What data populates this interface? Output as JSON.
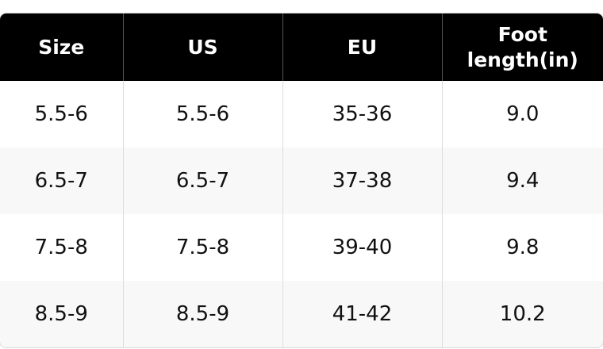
{
  "table": {
    "header": [
      "Size",
      "US",
      "EU",
      "Foot length(in)"
    ],
    "rows": [
      [
        "5.5-6",
        "5.5-6",
        "35-36",
        "9.0"
      ],
      [
        "6.5-7",
        "6.5-7",
        "37-38",
        "9.4"
      ],
      [
        "7.5-8",
        "7.5-8",
        "39-40",
        "9.8"
      ],
      [
        "8.5-9",
        "8.5-9",
        "41-42",
        "10.2"
      ]
    ]
  }
}
